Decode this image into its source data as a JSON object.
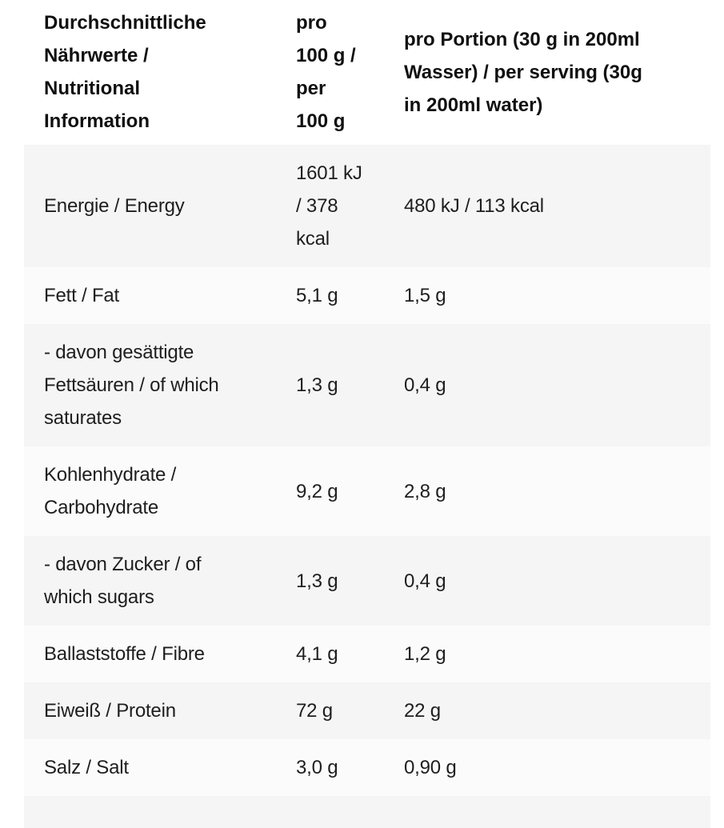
{
  "table": {
    "header": {
      "col_label": "Durchschnittliche\nNährwerte /\nNutritional\nInformation",
      "col_per100": "pro\n100 g /\nper\n100 g",
      "col_portion": "pro Portion (30 g in 200ml\nWasser) / per serving (30g\nin 200ml water)"
    },
    "rows": [
      {
        "label": "Energie / Energy",
        "per100": "1601 kJ\n/ 378\nkcal",
        "portion": "480 kJ / 113 kcal"
      },
      {
        "label": "Fett / Fat",
        "per100": "5,1 g",
        "portion": "1,5 g"
      },
      {
        "label": "- davon gesättigte\nFettsäuren / of which\nsaturates",
        "per100": "1,3 g",
        "portion": "0,4 g"
      },
      {
        "label": "Kohlenhydrate /\nCarbohydrate",
        "per100": "9,2 g",
        "portion": "2,8 g"
      },
      {
        "label": "- davon Zucker / of\nwhich sugars",
        "per100": "1,3 g",
        "portion": "0,4 g"
      },
      {
        "label": "Ballaststoffe / Fibre",
        "per100": "4,1 g",
        "portion": "1,2 g"
      },
      {
        "label": "Eiweiß / Protein",
        "per100": "72 g",
        "portion": "22 g"
      },
      {
        "label": "Salz / Salt",
        "per100": "3,0 g",
        "portion": "0,90 g"
      }
    ]
  },
  "colors": {
    "stripe_dark": "#f5f5f5",
    "stripe_light": "#fbfbfb",
    "header_text": "#101010",
    "body_text": "#1e1e1e",
    "page_background": "#ffffff"
  }
}
